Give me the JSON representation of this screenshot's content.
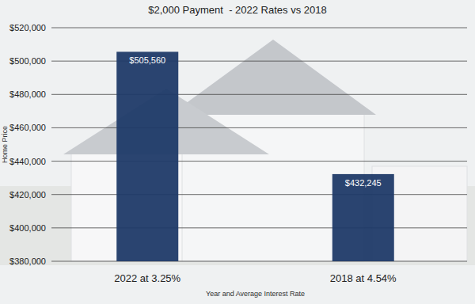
{
  "chart_data": {
    "type": "bar",
    "title": "$2,000 Payment  - 2022 Rates vs 2018",
    "x_label": "Year and Average Interest Rate",
    "y_label": "Home Price",
    "categories": [
      "2022 at 3.25%",
      "2018 at 4.54%"
    ],
    "values": [
      505560,
      432245
    ],
    "value_labels": [
      "$505,560",
      "$432,245"
    ],
    "color": "#1f3a68",
    "ylim": [
      380000,
      520000
    ],
    "yticks": [
      {
        "value": 380000,
        "label": "$380,000"
      },
      {
        "value": 400000,
        "label": "$400,000"
      },
      {
        "value": 420000,
        "label": "$420,000"
      },
      {
        "value": 440000,
        "label": "$440,000"
      },
      {
        "value": 460000,
        "label": "$460,000"
      },
      {
        "value": 480000,
        "label": "$480,000"
      },
      {
        "value": 500000,
        "label": "$500,000"
      },
      {
        "value": 520000,
        "label": "$520,000"
      }
    ],
    "grid": true,
    "data_labels": true
  }
}
